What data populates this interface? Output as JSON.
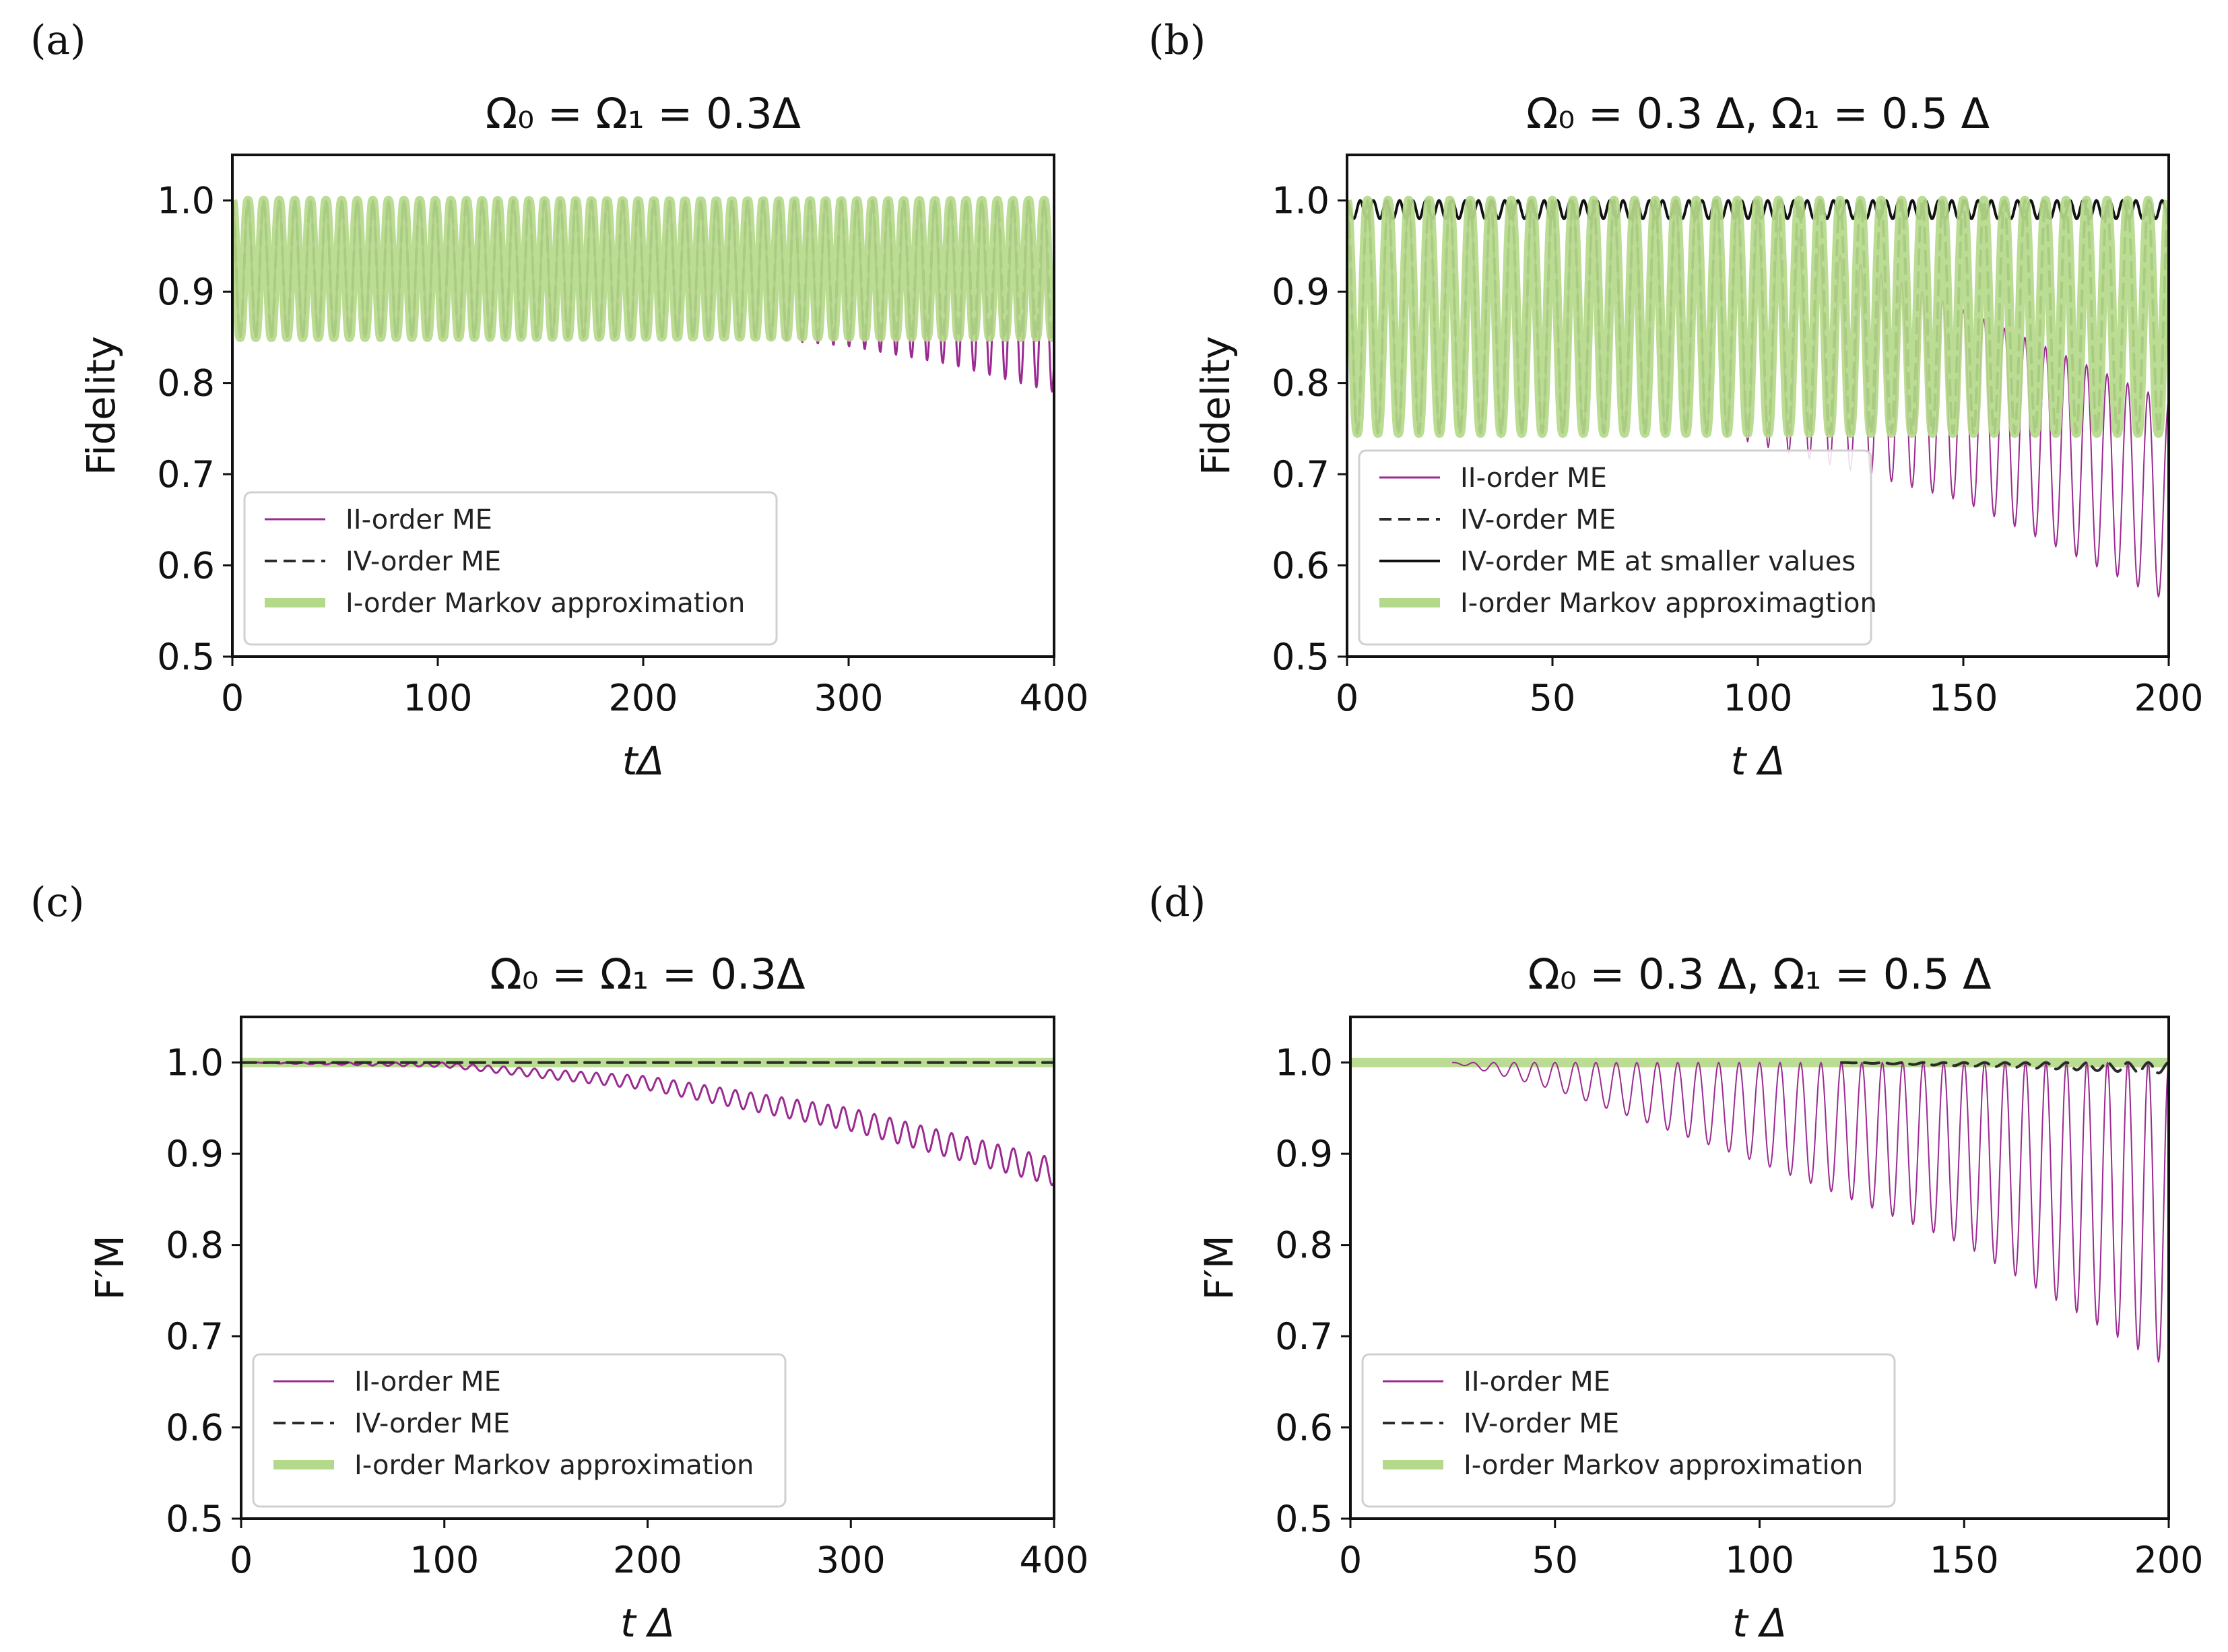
{
  "figure": {
    "colors": {
      "ii_order": "#9b2b91",
      "iv_order": "#2b2b2b",
      "markov": "#b5d98a",
      "black": "#111111"
    }
  },
  "chart_data": [
    {
      "panel": "(a)",
      "type": "line",
      "title": "Ω₀ = Ω₁ = 0.3Δ",
      "xlabel": "tΔ",
      "ylabel": "Fidelity",
      "xlim": [
        0,
        400
      ],
      "ylim": [
        0.5,
        1.05
      ],
      "xticks": [
        0,
        100,
        200,
        300,
        400
      ],
      "yticks": [
        0.5,
        0.6,
        0.7,
        0.8,
        0.9,
        1.0
      ],
      "ytick_labels": [
        "0.5",
        "0.6",
        "0.7",
        "0.8",
        "0.9",
        "1.0"
      ],
      "grid": false,
      "legend_position": "lower-left",
      "series": [
        {
          "name": "II-order ME",
          "style": "solid",
          "color": "#9b2b91",
          "width": 3,
          "osc_period": 7.6,
          "x_start": 0,
          "upper": [
            [
              0,
              1.0
            ],
            [
              400,
              1.0
            ]
          ],
          "lower": [
            [
              0,
              0.85
            ],
            [
              250,
              0.85
            ],
            [
              300,
              0.84
            ],
            [
              350,
              0.82
            ],
            [
              400,
              0.79
            ]
          ]
        },
        {
          "name": "IV-order ME",
          "style": "dashed",
          "color": "#2b2b2b",
          "width": 4,
          "osc_period": 7.6,
          "x_start": 0,
          "upper": [
            [
              0,
              1.0
            ],
            [
              400,
              1.0
            ]
          ],
          "lower": [
            [
              0,
              0.85
            ],
            [
              400,
              0.85
            ]
          ]
        },
        {
          "name": "I-order Markov approximation",
          "style": "thick",
          "color": "#b5d98a",
          "width": 14,
          "osc_period": 7.6,
          "x_start": 0,
          "upper": [
            [
              0,
              1.0
            ],
            [
              400,
              1.0
            ]
          ],
          "lower": [
            [
              0,
              0.85
            ],
            [
              400,
              0.85
            ]
          ]
        }
      ]
    },
    {
      "panel": "(b)",
      "type": "line",
      "title": "Ω₀ = 0.3 Δ, Ω₁ = 0.5 Δ",
      "xlabel": "t Δ",
      "ylabel": "Fidelity",
      "xlim": [
        0,
        200
      ],
      "ylim": [
        0.5,
        1.05
      ],
      "xticks": [
        0,
        50,
        100,
        150,
        200
      ],
      "yticks": [
        0.5,
        0.6,
        0.7,
        0.8,
        0.9,
        1.0
      ],
      "ytick_labels": [
        "0.5",
        "0.6",
        "0.7",
        "0.8",
        "0.9",
        "1.0"
      ],
      "grid": false,
      "legend_position": "lower-left",
      "series": [
        {
          "name": "II-order ME",
          "style": "solid",
          "color": "#9b2b91",
          "width": 2,
          "osc_period": 5.0,
          "x_start": 0,
          "upper": [
            [
              0,
              1.0
            ],
            [
              90,
              1.0
            ],
            [
              150,
              0.88
            ],
            [
              200,
              0.78
            ]
          ],
          "lower": [
            [
              0,
              0.745
            ],
            [
              90,
              0.745
            ],
            [
              150,
              0.67
            ],
            [
              200,
              0.56
            ]
          ]
        },
        {
          "name": "IV-order ME",
          "style": "dashed",
          "color": "#2b2b2b",
          "width": 4,
          "osc_period": 5.0,
          "x_start": 0,
          "upper": [
            [
              0,
              1.0
            ],
            [
              200,
              1.0
            ]
          ],
          "lower": [
            [
              0,
              0.745
            ],
            [
              200,
              0.745
            ]
          ]
        },
        {
          "name": "IV-order ME at smaller values",
          "style": "solid",
          "color": "#111111",
          "width": 4,
          "osc_period": 3.2,
          "x_start": 0,
          "upper": [
            [
              0,
              1.0
            ],
            [
              200,
              1.0
            ]
          ],
          "lower": [
            [
              0,
              0.98
            ],
            [
              200,
              0.98
            ]
          ]
        },
        {
          "name": "I-order Markov approximagtion",
          "style": "thick",
          "color": "#b5d98a",
          "width": 14,
          "osc_period": 5.0,
          "x_start": 0,
          "upper": [
            [
              0,
              1.0
            ],
            [
              200,
              1.0
            ]
          ],
          "lower": [
            [
              0,
              0.745
            ],
            [
              200,
              0.745
            ]
          ]
        }
      ]
    },
    {
      "panel": "(c)",
      "type": "line",
      "title": "Ω₀ = Ω₁ = 0.3Δ",
      "xlabel": "t Δ",
      "ylabel": "F′M",
      "xlim": [
        0,
        400
      ],
      "ylim": [
        0.5,
        1.05
      ],
      "xticks": [
        0,
        100,
        200,
        300,
        400
      ],
      "yticks": [
        0.5,
        0.6,
        0.7,
        0.8,
        0.9,
        1.0
      ],
      "ytick_labels": [
        "0.5",
        "0.6",
        "0.7",
        "0.8",
        "0.9",
        "1.0"
      ],
      "grid": false,
      "legend_position": "lower-left",
      "series": [
        {
          "name": "I-order Markov approximation",
          "style": "thick",
          "color": "#b5d98a",
          "width": 14,
          "osc_period": 0,
          "x_start": 0,
          "upper": [
            [
              0,
              1.0
            ],
            [
              400,
              1.0
            ]
          ],
          "lower": [
            [
              0,
              1.0
            ],
            [
              400,
              1.0
            ]
          ]
        },
        {
          "name": "II-order ME",
          "style": "solid",
          "color": "#9b2b91",
          "width": 3,
          "osc_period": 7.6,
          "x_start": 0,
          "upper": [
            [
              0,
              1.0
            ],
            [
              100,
              1.0
            ],
            [
              200,
              0.985
            ],
            [
              300,
              0.95
            ],
            [
              400,
              0.895
            ]
          ],
          "lower": [
            [
              0,
              1.0
            ],
            [
              100,
              0.995
            ],
            [
              200,
              0.97
            ],
            [
              300,
              0.925
            ],
            [
              400,
              0.865
            ]
          ]
        },
        {
          "name": "IV-order ME",
          "style": "dashed",
          "color": "#2b2b2b",
          "width": 4,
          "osc_period": 0,
          "x_start": 0,
          "upper": [
            [
              0,
              1.0
            ],
            [
              400,
              1.0
            ]
          ],
          "lower": [
            [
              0,
              1.0
            ],
            [
              400,
              1.0
            ]
          ]
        }
      ]
    },
    {
      "panel": "(d)",
      "type": "line",
      "title": "Ω₀ = 0.3 Δ, Ω₁ = 0.5 Δ",
      "xlabel": "t Δ",
      "ylabel": "F′M",
      "xlim": [
        0,
        200
      ],
      "ylim": [
        0.5,
        1.05
      ],
      "xticks": [
        0,
        50,
        100,
        150,
        200
      ],
      "yticks": [
        0.5,
        0.6,
        0.7,
        0.8,
        0.9,
        1.0
      ],
      "ytick_labels": [
        "0.5",
        "0.6",
        "0.7",
        "0.8",
        "0.9",
        "1.0"
      ],
      "grid": false,
      "legend_position": "lower-left",
      "series": [
        {
          "name": "I-order Markov approximation",
          "style": "thick",
          "color": "#b5d98a",
          "width": 14,
          "osc_period": 0,
          "x_start": 0,
          "upper": [
            [
              0,
              1.0
            ],
            [
              200,
              1.0
            ]
          ],
          "lower": [
            [
              0,
              1.0
            ],
            [
              200,
              1.0
            ]
          ]
        },
        {
          "name": "II-order ME",
          "style": "solid",
          "color": "#9b2b91",
          "width": 2,
          "osc_period": 5.0,
          "x_start": 25,
          "upper": [
            [
              25,
              1.0
            ],
            [
              200,
              1.0
            ]
          ],
          "lower": [
            [
              25,
              1.0
            ],
            [
              50,
              0.97
            ],
            [
              100,
              0.89
            ],
            [
              150,
              0.8
            ],
            [
              200,
              0.665
            ]
          ]
        },
        {
          "name": "IV-order ME",
          "style": "dashed",
          "color": "#2b2b2b",
          "width": 4,
          "osc_period": 5.0,
          "x_start": 120,
          "upper": [
            [
              120,
              1.0
            ],
            [
              200,
              1.0
            ]
          ],
          "lower": [
            [
              120,
              1.0
            ],
            [
              160,
              0.995
            ],
            [
              200,
              0.988
            ]
          ]
        }
      ]
    }
  ]
}
